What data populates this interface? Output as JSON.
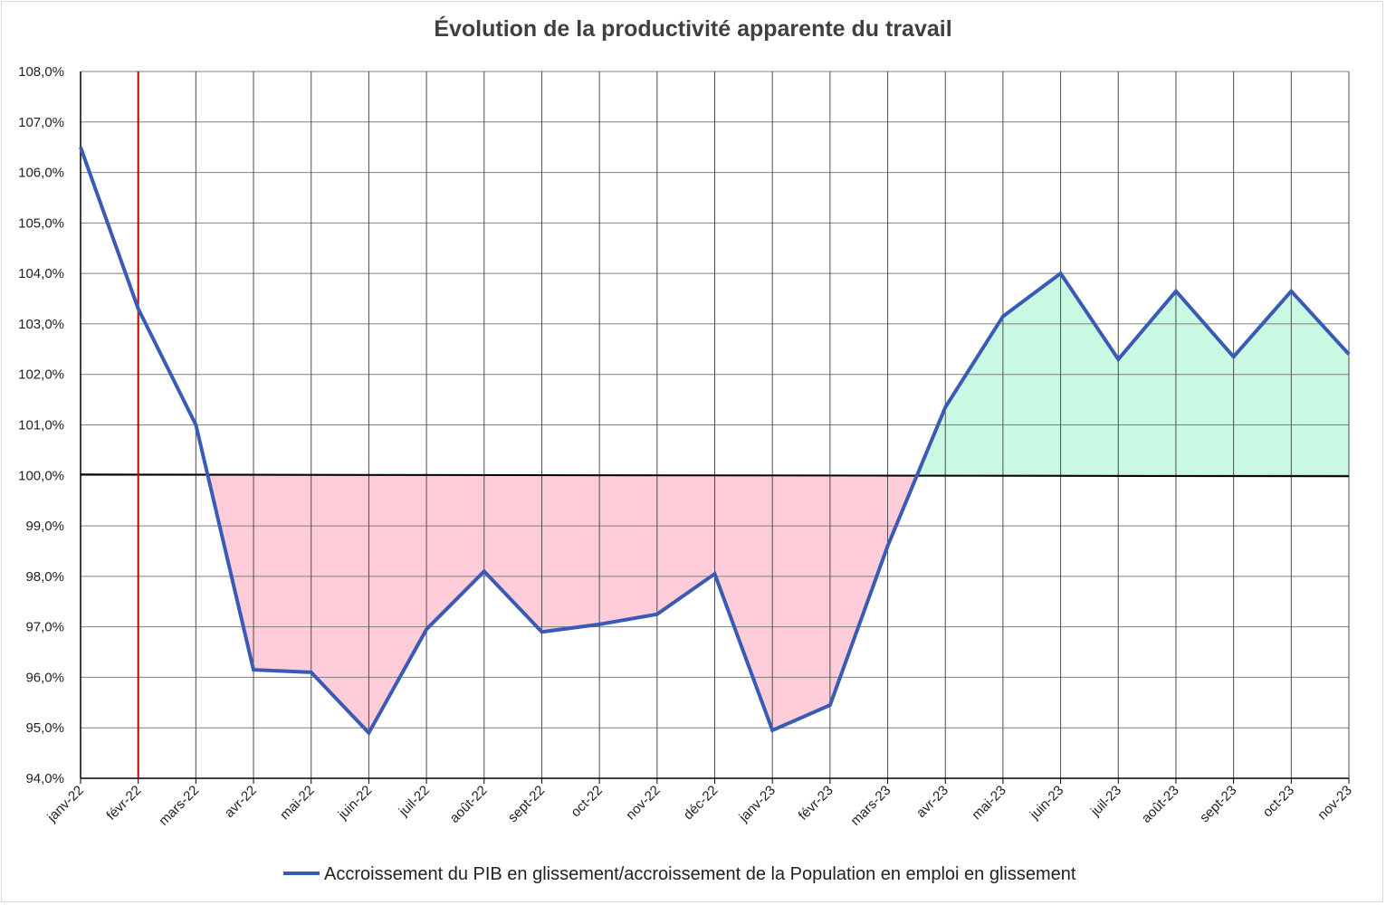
{
  "chart_data": {
    "type": "line",
    "title": "Évolution de la productivité apparente du travail",
    "xlabel": "",
    "ylabel": "",
    "categories": [
      "janv-22",
      "févr-22",
      "mars-22",
      "avr-22",
      "mai-22",
      "juin-22",
      "juil-22",
      "août-22",
      "sept-22",
      "oct-22",
      "nov-22",
      "déc-22",
      "janv-23",
      "févr-23",
      "mars-23",
      "avr-23",
      "mai-23",
      "juin-23",
      "juil-23",
      "août-23",
      "sept-23",
      "oct-23",
      "nov-23"
    ],
    "ylim": [
      94.0,
      108.0
    ],
    "yticks": [
      "94,0%",
      "95,0%",
      "96,0%",
      "97,0%",
      "98,0%",
      "99,0%",
      "100,0%",
      "101,0%",
      "102,0%",
      "103,0%",
      "104,0%",
      "105,0%",
      "106,0%",
      "107,0%",
      "108,0%"
    ],
    "series": [
      {
        "name": "Accroissement du PIB en glissement/accroissement de la Population en emploi en glissement",
        "color": "#3a5bb5",
        "values": [
          106.5,
          103.3,
          101.0,
          96.15,
          96.1,
          94.9,
          96.95,
          98.1,
          96.9,
          97.05,
          97.25,
          98.05,
          94.95,
          95.45,
          98.6,
          101.35,
          103.15,
          104.0,
          102.3,
          103.65,
          102.35,
          103.65,
          102.4
        ]
      }
    ],
    "reference_line": {
      "value": 100.0,
      "color": "#000000"
    },
    "marker_line": {
      "category": "févr-22",
      "color": "#c00000"
    },
    "fill_below_100": "#ffccd9",
    "fill_above_100": "#c9f9e2",
    "grid": true,
    "legend_position": "bottom"
  }
}
